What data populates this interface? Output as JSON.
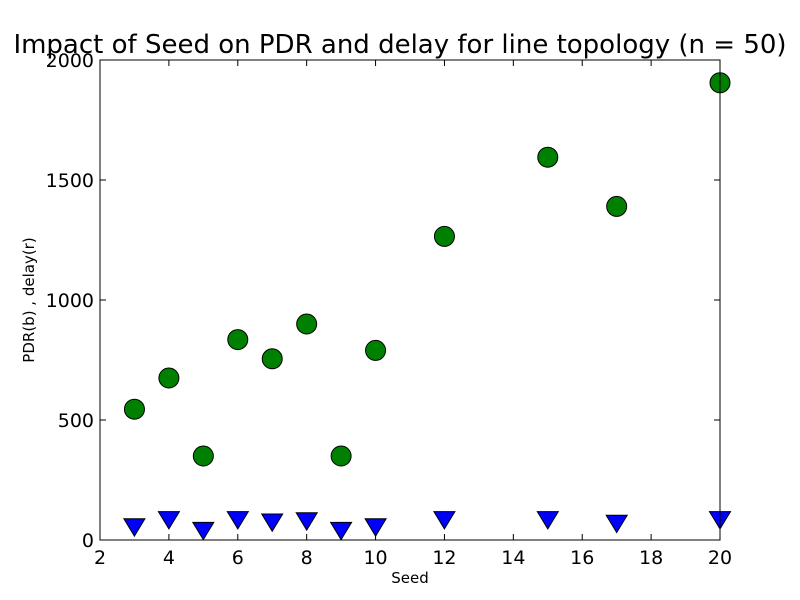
{
  "chart_data": {
    "type": "scatter",
    "title": "Impact of Seed on PDR and delay for line topology (n = 50)",
    "xlabel": "Seed",
    "ylabel": "PDR(b) , delay(r)",
    "xlim": [
      2,
      20
    ],
    "ylim": [
      0,
      2000
    ],
    "xticks": [
      "2",
      "4",
      "6",
      "8",
      "10",
      "12",
      "14",
      "16",
      "18",
      "20"
    ],
    "yticks": [
      "0",
      "500",
      "1000",
      "1500",
      "2000"
    ],
    "grid": false,
    "legend": "none",
    "x": [
      3,
      4,
      5,
      6,
      7,
      8,
      9,
      10,
      12,
      15,
      17,
      20
    ],
    "series": [
      {
        "marker": "circle",
        "color": "#008000",
        "values": [
          545,
          675,
          350,
          835,
          755,
          900,
          350,
          790,
          1265,
          1595,
          1390,
          1905
        ]
      },
      {
        "marker": "triangle-down",
        "color": "#0000ff",
        "values": [
          60,
          90,
          45,
          90,
          80,
          85,
          45,
          60,
          90,
          90,
          75,
          90
        ]
      }
    ]
  }
}
